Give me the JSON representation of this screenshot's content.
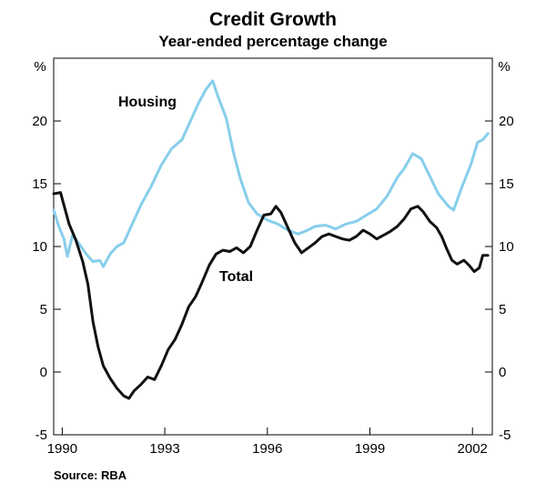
{
  "chart_data": {
    "type": "line",
    "title": "Credit Growth",
    "subtitle": "Year-ended percentage change",
    "ylabel_left": "%",
    "ylabel_right": "%",
    "ylim": [
      -5,
      25
    ],
    "yticks": [
      -5,
      0,
      5,
      10,
      15,
      20
    ],
    "xlim": [
      1989.75,
      2002.58
    ],
    "xticks": [
      1990,
      1993,
      1996,
      1999,
      2002
    ],
    "source": "Source: RBA",
    "series": [
      {
        "name": "Housing",
        "label": "Housing",
        "color": "#87ceeb",
        "points": [
          [
            1989.75,
            12.9
          ],
          [
            1989.9,
            11.6
          ],
          [
            1990.05,
            10.6
          ],
          [
            1990.15,
            9.2
          ],
          [
            1990.3,
            10.9
          ],
          [
            1990.5,
            10.2
          ],
          [
            1990.7,
            9.4
          ],
          [
            1990.9,
            8.8
          ],
          [
            1991.1,
            8.9
          ],
          [
            1991.2,
            8.4
          ],
          [
            1991.4,
            9.4
          ],
          [
            1991.6,
            10.0
          ],
          [
            1991.8,
            10.3
          ],
          [
            1992.0,
            11.5
          ],
          [
            1992.3,
            13.3
          ],
          [
            1992.6,
            14.8
          ],
          [
            1992.9,
            16.5
          ],
          [
            1993.2,
            17.8
          ],
          [
            1993.5,
            18.5
          ],
          [
            1993.75,
            20.0
          ],
          [
            1994.0,
            21.5
          ],
          [
            1994.2,
            22.5
          ],
          [
            1994.4,
            23.2
          ],
          [
            1994.55,
            22.0
          ],
          [
            1994.8,
            20.2
          ],
          [
            1995.0,
            17.6
          ],
          [
            1995.2,
            15.5
          ],
          [
            1995.45,
            13.5
          ],
          [
            1995.7,
            12.6
          ],
          [
            1996.0,
            12.1
          ],
          [
            1996.3,
            11.8
          ],
          [
            1996.6,
            11.3
          ],
          [
            1996.9,
            11.0
          ],
          [
            1997.1,
            11.2
          ],
          [
            1997.4,
            11.6
          ],
          [
            1997.7,
            11.7
          ],
          [
            1998.0,
            11.4
          ],
          [
            1998.3,
            11.8
          ],
          [
            1998.6,
            12.0
          ],
          [
            1998.9,
            12.5
          ],
          [
            1999.2,
            13.0
          ],
          [
            1999.5,
            14.0
          ],
          [
            1999.8,
            15.5
          ],
          [
            2000.0,
            16.2
          ],
          [
            2000.25,
            17.4
          ],
          [
            2000.5,
            17.0
          ],
          [
            2000.75,
            15.6
          ],
          [
            2001.0,
            14.2
          ],
          [
            2001.3,
            13.2
          ],
          [
            2001.45,
            12.9
          ],
          [
            2001.7,
            14.8
          ],
          [
            2001.95,
            16.5
          ],
          [
            2002.15,
            18.3
          ],
          [
            2002.3,
            18.5
          ],
          [
            2002.45,
            19.0
          ]
        ]
      },
      {
        "name": "Total",
        "label": "Total",
        "color": "#111111",
        "points": [
          [
            1989.75,
            14.2
          ],
          [
            1989.95,
            14.3
          ],
          [
            1990.2,
            11.8
          ],
          [
            1990.4,
            10.5
          ],
          [
            1990.6,
            8.8
          ],
          [
            1990.75,
            7.0
          ],
          [
            1990.9,
            4.0
          ],
          [
            1991.05,
            2.0
          ],
          [
            1991.2,
            0.5
          ],
          [
            1991.4,
            -0.5
          ],
          [
            1991.6,
            -1.3
          ],
          [
            1991.8,
            -1.9
          ],
          [
            1991.95,
            -2.1
          ],
          [
            1992.1,
            -1.5
          ],
          [
            1992.3,
            -1.0
          ],
          [
            1992.5,
            -0.4
          ],
          [
            1992.7,
            -0.6
          ],
          [
            1992.9,
            0.5
          ],
          [
            1993.1,
            1.8
          ],
          [
            1993.3,
            2.6
          ],
          [
            1993.5,
            3.8
          ],
          [
            1993.7,
            5.2
          ],
          [
            1993.9,
            6.0
          ],
          [
            1994.1,
            7.2
          ],
          [
            1994.3,
            8.5
          ],
          [
            1994.5,
            9.4
          ],
          [
            1994.7,
            9.7
          ],
          [
            1994.9,
            9.6
          ],
          [
            1995.1,
            9.9
          ],
          [
            1995.3,
            9.5
          ],
          [
            1995.5,
            10.0
          ],
          [
            1995.7,
            11.3
          ],
          [
            1995.9,
            12.5
          ],
          [
            1996.1,
            12.6
          ],
          [
            1996.25,
            13.2
          ],
          [
            1996.4,
            12.7
          ],
          [
            1996.6,
            11.5
          ],
          [
            1996.8,
            10.3
          ],
          [
            1997.0,
            9.5
          ],
          [
            1997.2,
            9.9
          ],
          [
            1997.4,
            10.3
          ],
          [
            1997.6,
            10.8
          ],
          [
            1997.8,
            11.0
          ],
          [
            1998.0,
            10.8
          ],
          [
            1998.2,
            10.6
          ],
          [
            1998.4,
            10.5
          ],
          [
            1998.6,
            10.8
          ],
          [
            1998.8,
            11.3
          ],
          [
            1999.0,
            11.0
          ],
          [
            1999.2,
            10.6
          ],
          [
            1999.4,
            10.9
          ],
          [
            1999.6,
            11.2
          ],
          [
            1999.8,
            11.6
          ],
          [
            2000.0,
            12.2
          ],
          [
            2000.2,
            13.0
          ],
          [
            2000.4,
            13.2
          ],
          [
            2000.55,
            12.8
          ],
          [
            2000.75,
            12.0
          ],
          [
            2000.95,
            11.5
          ],
          [
            2001.1,
            10.8
          ],
          [
            2001.25,
            9.8
          ],
          [
            2001.4,
            8.9
          ],
          [
            2001.55,
            8.6
          ],
          [
            2001.75,
            8.9
          ],
          [
            2001.9,
            8.5
          ],
          [
            2002.05,
            8.0
          ],
          [
            2002.2,
            8.3
          ],
          [
            2002.3,
            9.3
          ],
          [
            2002.45,
            9.3
          ]
        ]
      }
    ]
  }
}
